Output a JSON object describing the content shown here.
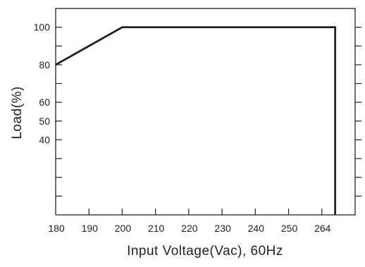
{
  "chart_data": {
    "type": "line",
    "title": "",
    "xlabel": "Input Voltage(Vac), 60Hz",
    "ylabel": "Load(%)",
    "x_tick_labels": [
      "180",
      "190",
      "200",
      "210",
      "220",
      "230",
      "240",
      "250",
      "264"
    ],
    "x_ticks": [
      180,
      190,
      200,
      210,
      220,
      230,
      240,
      250,
      260,
      270
    ],
    "x_tick_label_values": [
      180,
      190,
      200,
      210,
      220,
      230,
      240,
      250,
      260
    ],
    "y_tick_labels": [
      "100",
      "80",
      "60",
      "50",
      "40"
    ],
    "y_tick_label_values": [
      100,
      80,
      60,
      50,
      40
    ],
    "y_ticks": [
      0,
      10,
      20,
      30,
      40,
      50,
      60,
      70,
      80,
      90,
      100
    ],
    "xlim": [
      180,
      270
    ],
    "ylim": [
      0,
      110
    ],
    "grid": false,
    "series": [
      {
        "x": [
          180,
          200,
          264,
          264
        ],
        "y": [
          80,
          100,
          100,
          0
        ],
        "color": "#231f20"
      }
    ]
  }
}
